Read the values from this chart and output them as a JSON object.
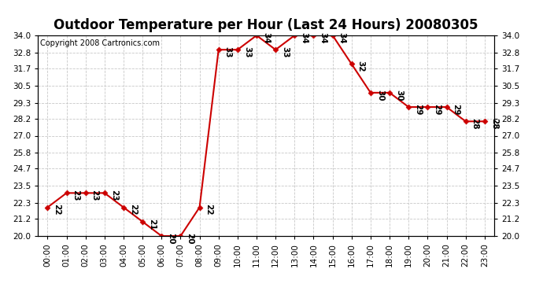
{
  "title": "Outdoor Temperature per Hour (Last 24 Hours) 20080305",
  "copyright": "Copyright 2008 Cartronics.com",
  "hours": [
    "00:00",
    "01:00",
    "02:00",
    "03:00",
    "04:00",
    "05:00",
    "06:00",
    "07:00",
    "08:00",
    "09:00",
    "10:00",
    "11:00",
    "12:00",
    "13:00",
    "14:00",
    "15:00",
    "16:00",
    "17:00",
    "18:00",
    "19:00",
    "20:00",
    "21:00",
    "22:00",
    "23:00"
  ],
  "temps": [
    22,
    23,
    23,
    23,
    22,
    21,
    20,
    20,
    22,
    33,
    33,
    34,
    33,
    34,
    34,
    34,
    32,
    30,
    30,
    29,
    29,
    29,
    28,
    28
  ],
  "line_color": "#cc0000",
  "marker_color": "#cc0000",
  "bg_color": "#ffffff",
  "grid_color": "#c8c8c8",
  "ylim_min": 20.0,
  "ylim_max": 34.0,
  "yticks": [
    20.0,
    21.2,
    22.3,
    23.5,
    24.7,
    25.8,
    27.0,
    28.2,
    29.3,
    30.5,
    31.7,
    32.8,
    34.0
  ],
  "title_fontsize": 12,
  "tick_fontsize": 7.5,
  "annot_fontsize": 7.5,
  "copyright_fontsize": 7
}
